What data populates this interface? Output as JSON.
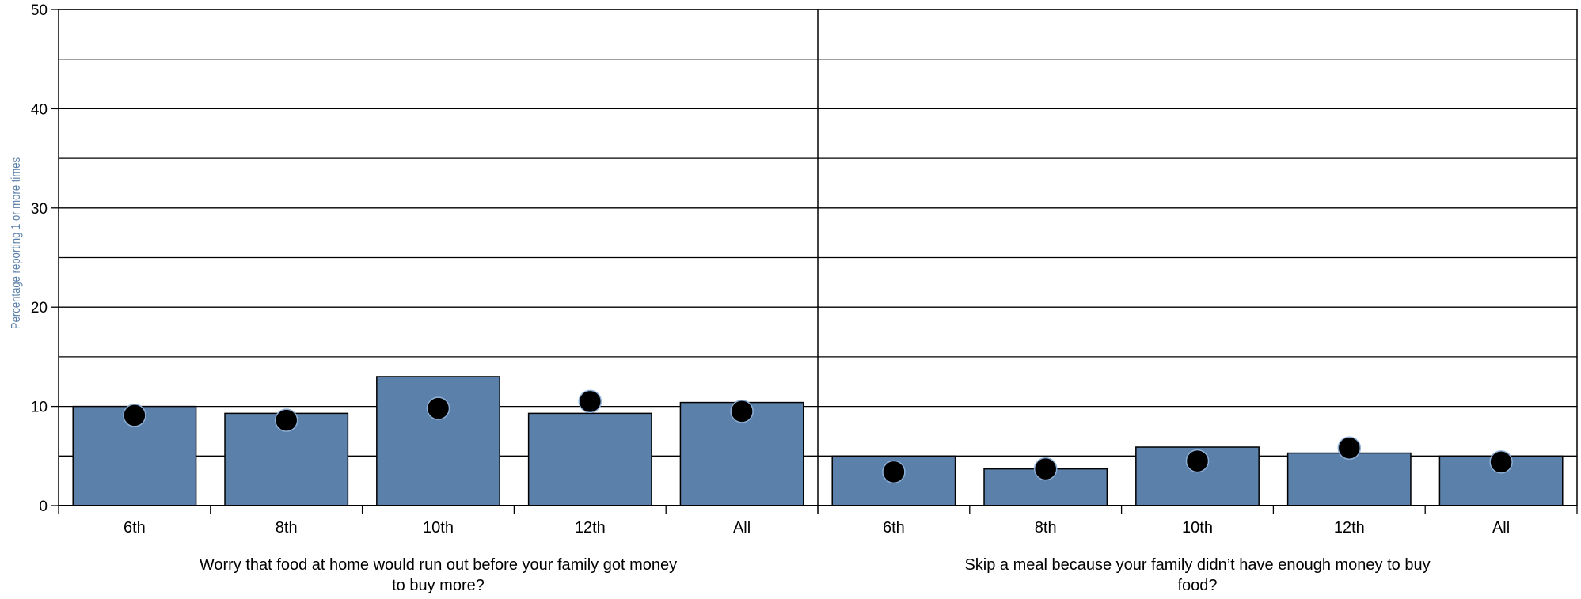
{
  "chart_data": {
    "type": "bar",
    "ylabel": "Percentage reporting 1 or more times",
    "ylim": [
      0,
      50
    ],
    "y_ticks": [
      0,
      10,
      20,
      30,
      40,
      50
    ],
    "y_ticks_labeled": [
      "0",
      "10",
      "20",
      "30",
      "40",
      "50"
    ],
    "grid": true,
    "colors": {
      "bar": "#5b80aa",
      "dot": "#000000",
      "dot_stroke": "#8fb0d6",
      "ylabel": "#5b80aa",
      "axis": "#000000"
    },
    "panels": [
      {
        "title": "Worry that food at home would run out before your family got money to buy more?",
        "title_lines": [
          "Worry that food at home would run out before your family got money",
          "to buy more?"
        ],
        "categories": [
          "6th",
          "8th",
          "10th",
          "12th",
          "All"
        ],
        "series": [
          {
            "mark": "bar",
            "values": [
              10.0,
              9.3,
              13.0,
              9.3,
              10.4
            ]
          },
          {
            "mark": "dot",
            "values": [
              9.1,
              8.6,
              9.8,
              10.5,
              9.5
            ]
          }
        ]
      },
      {
        "title": "Skip a meal because your family didn’t have enough money to buy food?",
        "title_lines": [
          "Skip a meal because your family didn’t have enough money to buy",
          "food?"
        ],
        "categories": [
          "6th",
          "8th",
          "10th",
          "12th",
          "All"
        ],
        "series": [
          {
            "mark": "bar",
            "values": [
              5.0,
              3.7,
              5.9,
              5.3,
              5.0
            ]
          },
          {
            "mark": "dot",
            "values": [
              3.4,
              3.7,
              4.5,
              5.8,
              4.4
            ]
          }
        ]
      }
    ]
  }
}
